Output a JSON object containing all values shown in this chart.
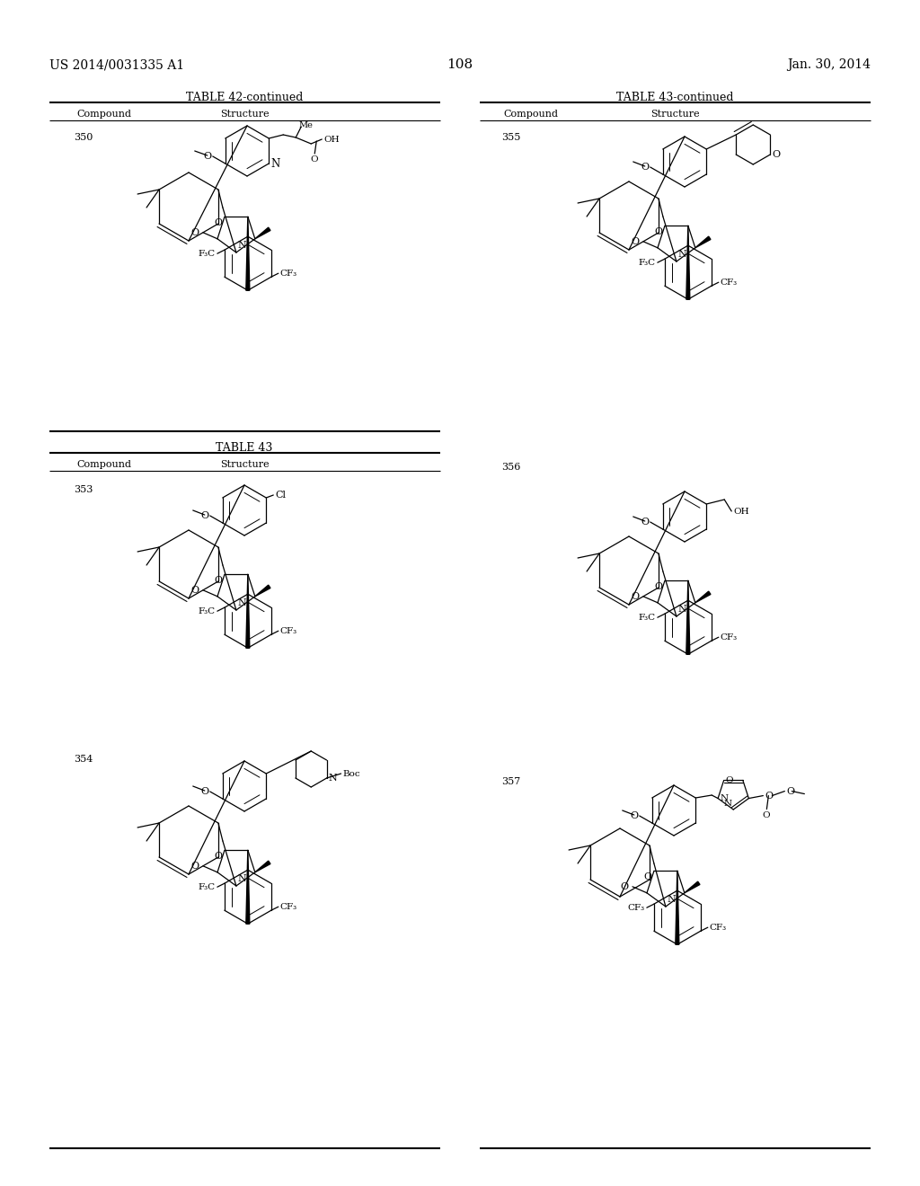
{
  "page_header_left": "US 2014/0031335 A1",
  "page_header_right": "Jan. 30, 2014",
  "page_number": "108",
  "table42_title": "TABLE 42-continued",
  "table43_title": "TABLE 43",
  "table43cont_title": "TABLE 43-continued",
  "col_compound": "Compound",
  "col_structure": "Structure",
  "bg": "#ffffff",
  "fg": "#000000"
}
